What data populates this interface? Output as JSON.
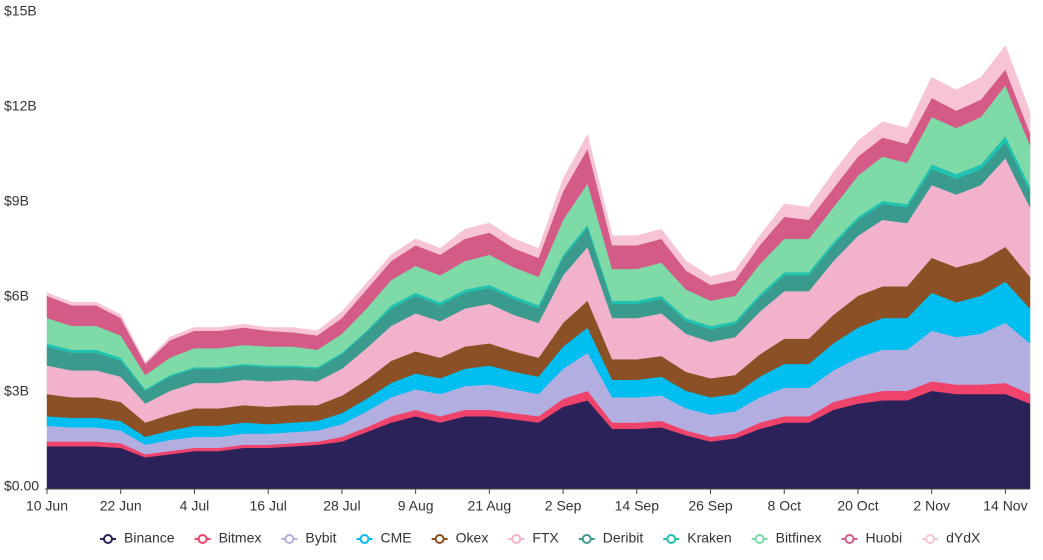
{
  "chart_data": {
    "type": "stacked_area",
    "categories": [
      "10 Jun",
      null,
      null,
      "22 Jun",
      null,
      null,
      "4 Jul",
      null,
      null,
      "16 Jul",
      null,
      null,
      "28 Jul",
      null,
      null,
      "9 Aug",
      null,
      null,
      "21 Aug",
      null,
      null,
      "2 Sep",
      null,
      null,
      "14 Sep",
      null,
      null,
      "26 Sep",
      null,
      null,
      "8 Oct",
      null,
      null,
      "20 Oct",
      null,
      null,
      "2 Nov",
      null,
      null,
      "14 Nov",
      null
    ],
    "ylim": [
      0,
      15
    ],
    "yticks": [
      {
        "value": 0,
        "label": "$0.00"
      },
      {
        "value": 3,
        "label": "$3B"
      },
      {
        "value": 6,
        "label": "$6B"
      },
      {
        "value": 9,
        "label": "$9B"
      },
      {
        "value": 12,
        "label": "$12B"
      },
      {
        "value": 15,
        "label": "$15B"
      }
    ],
    "legend": "bottom",
    "series": [
      {
        "name": "Binance",
        "color": "#2a2258",
        "values": [
          1.35,
          1.35,
          1.35,
          1.3,
          1.0,
          1.1,
          1.2,
          1.2,
          1.3,
          1.3,
          1.35,
          1.4,
          1.5,
          1.8,
          2.1,
          2.3,
          2.1,
          2.3,
          2.3,
          2.2,
          2.1,
          2.6,
          2.8,
          1.9,
          1.9,
          1.95,
          1.7,
          1.5,
          1.6,
          1.9,
          2.1,
          2.1,
          2.5,
          2.7,
          2.8,
          2.8,
          3.1,
          3.0,
          3.0,
          3.0,
          2.7
        ]
      },
      {
        "name": "Bitmex",
        "color": "#f0436b",
        "values": [
          0.15,
          0.15,
          0.15,
          0.15,
          0.1,
          0.1,
          0.1,
          0.1,
          0.1,
          0.1,
          0.1,
          0.1,
          0.15,
          0.15,
          0.2,
          0.2,
          0.2,
          0.2,
          0.2,
          0.2,
          0.2,
          0.25,
          0.3,
          0.2,
          0.2,
          0.2,
          0.15,
          0.15,
          0.15,
          0.2,
          0.2,
          0.2,
          0.25,
          0.25,
          0.3,
          0.3,
          0.3,
          0.3,
          0.3,
          0.35,
          0.3
        ]
      },
      {
        "name": "Bybit",
        "color": "#b3aee0",
        "values": [
          0.5,
          0.45,
          0.45,
          0.4,
          0.3,
          0.35,
          0.35,
          0.35,
          0.35,
          0.35,
          0.35,
          0.35,
          0.4,
          0.5,
          0.6,
          0.65,
          0.7,
          0.75,
          0.8,
          0.75,
          0.7,
          0.95,
          1.2,
          0.8,
          0.8,
          0.8,
          0.7,
          0.7,
          0.7,
          0.8,
          0.9,
          0.9,
          1.0,
          1.2,
          1.3,
          1.3,
          1.6,
          1.5,
          1.6,
          1.9,
          1.6
        ]
      },
      {
        "name": "CME",
        "color": "#00bff0",
        "values": [
          0.3,
          0.3,
          0.3,
          0.3,
          0.25,
          0.3,
          0.35,
          0.35,
          0.35,
          0.3,
          0.3,
          0.3,
          0.35,
          0.4,
          0.45,
          0.5,
          0.5,
          0.55,
          0.6,
          0.55,
          0.55,
          0.7,
          0.8,
          0.55,
          0.55,
          0.6,
          0.55,
          0.55,
          0.55,
          0.65,
          0.75,
          0.75,
          0.85,
          0.95,
          1.0,
          1.0,
          1.2,
          1.1,
          1.2,
          1.3,
          1.1
        ]
      },
      {
        "name": "Okex",
        "color": "#8b5026",
        "values": [
          0.7,
          0.65,
          0.65,
          0.6,
          0.45,
          0.5,
          0.55,
          0.55,
          0.55,
          0.55,
          0.55,
          0.5,
          0.55,
          0.6,
          0.7,
          0.7,
          0.65,
          0.7,
          0.7,
          0.65,
          0.6,
          0.75,
          0.85,
          0.65,
          0.65,
          0.65,
          0.6,
          0.6,
          0.6,
          0.7,
          0.8,
          0.8,
          0.9,
          1.0,
          1.0,
          1.0,
          1.1,
          1.1,
          1.1,
          1.1,
          1.0
        ]
      },
      {
        "name": "FTX",
        "color": "#f2b2cb",
        "values": [
          0.9,
          0.85,
          0.85,
          0.8,
          0.6,
          0.75,
          0.8,
          0.8,
          0.8,
          0.8,
          0.8,
          0.75,
          0.85,
          1.0,
          1.1,
          1.2,
          1.15,
          1.2,
          1.25,
          1.15,
          1.1,
          1.5,
          1.7,
          1.3,
          1.3,
          1.35,
          1.2,
          1.15,
          1.2,
          1.35,
          1.5,
          1.5,
          1.7,
          1.9,
          2.1,
          2.0,
          2.3,
          2.3,
          2.4,
          2.8,
          2.2
        ]
      },
      {
        "name": "Deribit",
        "color": "#3b9a8e",
        "values": [
          0.6,
          0.55,
          0.55,
          0.5,
          0.4,
          0.45,
          0.45,
          0.45,
          0.45,
          0.45,
          0.4,
          0.4,
          0.45,
          0.5,
          0.55,
          0.55,
          0.5,
          0.5,
          0.5,
          0.5,
          0.45,
          0.55,
          0.6,
          0.45,
          0.45,
          0.45,
          0.4,
          0.4,
          0.4,
          0.45,
          0.5,
          0.5,
          0.5,
          0.5,
          0.5,
          0.5,
          0.5,
          0.5,
          0.5,
          0.5,
          0.5
        ]
      },
      {
        "name": "Kraken",
        "color": "#22c2b0",
        "values": [
          0.1,
          0.1,
          0.1,
          0.1,
          0.05,
          0.05,
          0.05,
          0.05,
          0.05,
          0.05,
          0.05,
          0.05,
          0.05,
          0.05,
          0.1,
          0.1,
          0.1,
          0.1,
          0.1,
          0.1,
          0.1,
          0.1,
          0.1,
          0.1,
          0.1,
          0.1,
          0.1,
          0.1,
          0.1,
          0.1,
          0.1,
          0.1,
          0.1,
          0.1,
          0.1,
          0.1,
          0.15,
          0.15,
          0.15,
          0.2,
          0.15
        ]
      },
      {
        "name": "Bitfinex",
        "color": "#7edba8",
        "values": [
          0.8,
          0.75,
          0.75,
          0.7,
          0.45,
          0.55,
          0.6,
          0.6,
          0.6,
          0.6,
          0.6,
          0.55,
          0.6,
          0.7,
          0.8,
          0.85,
          0.85,
          0.9,
          0.95,
          0.9,
          0.9,
          1.1,
          1.3,
          1.0,
          1.0,
          1.05,
          0.9,
          0.8,
          0.8,
          0.95,
          1.05,
          1.05,
          1.1,
          1.3,
          1.4,
          1.3,
          1.5,
          1.45,
          1.5,
          1.6,
          1.3
        ]
      },
      {
        "name": "Huobi",
        "color": "#d45b87",
        "values": [
          0.7,
          0.65,
          0.65,
          0.55,
          0.35,
          0.55,
          0.55,
          0.55,
          0.55,
          0.5,
          0.45,
          0.45,
          0.5,
          0.6,
          0.6,
          0.65,
          0.65,
          0.7,
          0.7,
          0.6,
          0.6,
          0.9,
          1.1,
          0.75,
          0.75,
          0.75,
          0.6,
          0.5,
          0.5,
          0.6,
          0.7,
          0.6,
          0.6,
          0.6,
          0.6,
          0.6,
          0.6,
          0.55,
          0.55,
          0.5,
          0.4
        ]
      },
      {
        "name": "dYdX",
        "color": "#f7c3d6",
        "values": [
          0.1,
          0.1,
          0.1,
          0.1,
          0.05,
          0.1,
          0.1,
          0.1,
          0.1,
          0.1,
          0.15,
          0.15,
          0.2,
          0.2,
          0.2,
          0.2,
          0.2,
          0.3,
          0.3,
          0.3,
          0.3,
          0.4,
          0.45,
          0.3,
          0.3,
          0.3,
          0.3,
          0.25,
          0.3,
          0.3,
          0.4,
          0.4,
          0.5,
          0.5,
          0.5,
          0.5,
          0.65,
          0.65,
          0.7,
          0.75,
          0.65
        ]
      }
    ]
  }
}
